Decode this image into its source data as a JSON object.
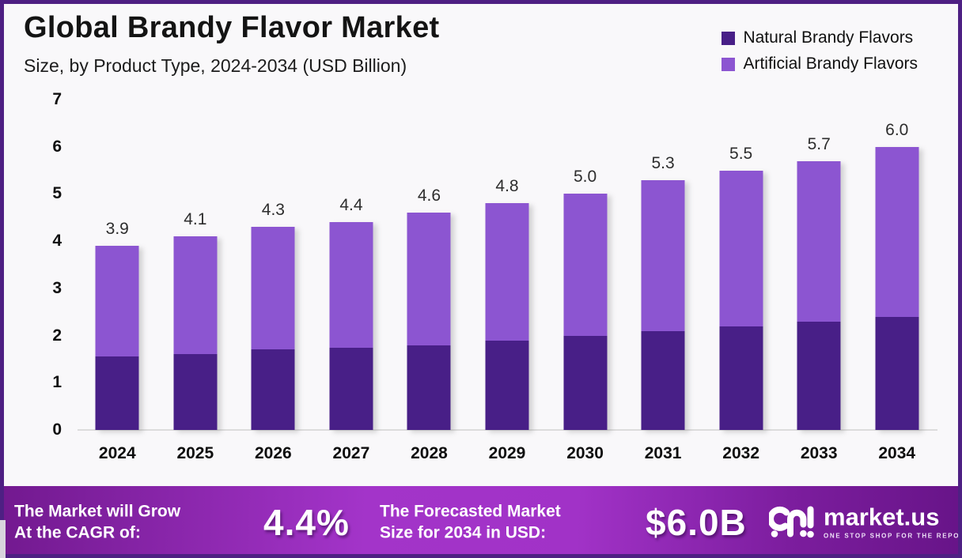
{
  "header": {
    "title": "Global Brandy Flavor Market",
    "subtitle": "Size, by Product Type, 2024-2034 (USD Billion)"
  },
  "chart_data": {
    "type": "bar",
    "stacked": true,
    "title": "Global Brandy Flavor Market",
    "subtitle": "Size, by Product Type, 2024-2034 (USD Billion)",
    "unit": "USD Billion",
    "categories": [
      "2024",
      "2025",
      "2026",
      "2027",
      "2028",
      "2029",
      "2030",
      "2031",
      "2032",
      "2033",
      "2034"
    ],
    "series": [
      {
        "name": "Natural Brandy Flavors",
        "color": "#481F87",
        "values": [
          1.55,
          1.6,
          1.7,
          1.75,
          1.8,
          1.9,
          2.0,
          2.1,
          2.2,
          2.3,
          2.4
        ]
      },
      {
        "name": "Artificial Brandy Flavors",
        "color": "#8C55D1",
        "values": [
          2.35,
          2.5,
          2.6,
          2.65,
          2.8,
          2.9,
          3.0,
          3.2,
          3.3,
          3.4,
          3.6
        ]
      }
    ],
    "totals_labels": [
      "3.9",
      "4.1",
      "4.3",
      "4.4",
      "4.6",
      "4.8",
      "5.0",
      "5.3",
      "5.5",
      "5.7",
      "6.0"
    ],
    "xlabel": "",
    "ylabel": "",
    "ylim": [
      0,
      7
    ],
    "yticks": [
      0,
      1,
      2,
      3,
      4,
      5,
      6,
      7
    ],
    "grid": false,
    "legend_position": "top-right"
  },
  "footer": {
    "cagr_text_line1": "The Market will Grow",
    "cagr_text_line2": "At the CAGR of:",
    "cagr_value": "4.4%",
    "forecast_text_line1": "The Forecasted Market",
    "forecast_text_line2": "Size for 2034 in USD:",
    "forecast_value": "$6.0B",
    "brand_name": "market.us",
    "brand_tagline": "ONE STOP SHOP FOR THE REPORTS"
  },
  "colors": {
    "border": "#4E2083",
    "axis_line": "#DCDCDC",
    "banner_gradient": [
      "#72198F",
      "#A334C9",
      "#671488"
    ]
  }
}
